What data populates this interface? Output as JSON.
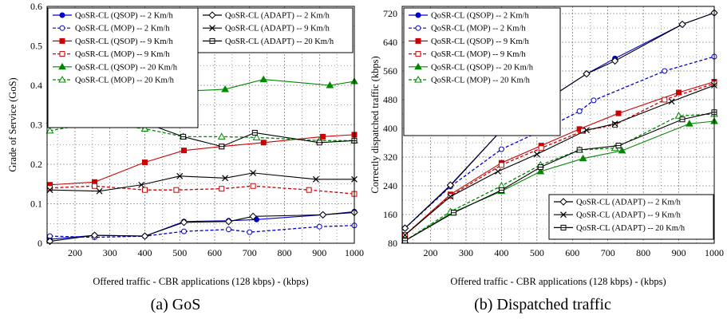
{
  "chart_data": [
    {
      "type": "line",
      "caption": "(a) GoS",
      "xlabel": "Offered traffic - CBR applications (128 kbps) - (kbps)",
      "ylabel": "Grade of Service (GoS)",
      "xlim": [
        120,
        1000
      ],
      "ylim": [
        0,
        0.6
      ],
      "xticks": [
        200,
        300,
        400,
        500,
        600,
        700,
        800,
        900,
        1000
      ],
      "yticks": [
        0,
        0.1,
        0.2,
        0.3,
        0.4,
        0.5,
        0.6
      ],
      "ytick_labels": [
        "0",
        "0.1",
        "0.2",
        "0.3",
        "0.4",
        "0.5",
        "0.6"
      ],
      "grid": true,
      "legend_placement": "top-left and top-center",
      "series": [
        {
          "name": "QoSR-CL (QSOP) -- 2 Km/h",
          "color": "#0000cc",
          "dash": "solid",
          "marker": "circle-filled",
          "legend": 0,
          "x": [
            128,
            256,
            400,
            512,
            640,
            720,
            910,
            1000
          ],
          "y": [
            0.01,
            0.02,
            0.018,
            0.055,
            0.057,
            0.06,
            0.072,
            0.08
          ]
        },
        {
          "name": "QoSR-CL (MOP) -- 2 Km/h",
          "color": "#0000cc",
          "dash": "dashed",
          "marker": "circle-open",
          "legend": 0,
          "x": [
            128,
            256,
            400,
            512,
            640,
            700,
            900,
            1000
          ],
          "y": [
            0.018,
            0.015,
            0.018,
            0.03,
            0.035,
            0.028,
            0.042,
            0.045
          ]
        },
        {
          "name": "QoSR-CL (QSOP) -- 9 Km/h",
          "color": "#cc0000",
          "dash": "solid",
          "marker": "square-filled",
          "legend": 0,
          "x": [
            128,
            256,
            400,
            512,
            620,
            740,
            910,
            1000
          ],
          "y": [
            0.148,
            0.155,
            0.205,
            0.235,
            0.245,
            0.255,
            0.27,
            0.275
          ]
        },
        {
          "name": "QoSR-CL (MOP) -- 9 Km/h",
          "color": "#cc0000",
          "dash": "dashed",
          "marker": "square-open",
          "legend": 0,
          "x": [
            128,
            256,
            400,
            490,
            620,
            710,
            870,
            1000
          ],
          "y": [
            0.14,
            0.145,
            0.135,
            0.135,
            0.138,
            0.145,
            0.135,
            0.125
          ]
        },
        {
          "name": "QoSR-CL (QSOP) -- 20 Km/h",
          "color": "#008800",
          "dash": "solid",
          "marker": "triangle-filled",
          "legend": 0,
          "x": [
            128,
            270,
            400,
            510,
            630,
            740,
            930,
            1000
          ],
          "y": [
            0.31,
            0.33,
            0.37,
            0.385,
            0.39,
            0.415,
            0.4,
            0.41
          ]
        },
        {
          "name": "QoSR-CL (MOP) -- 20 Km/h",
          "color": "#008800",
          "dash": "dashed",
          "marker": "triangle-open",
          "legend": 0,
          "x": [
            128,
            256,
            400,
            510,
            620,
            720,
            900,
            1000
          ],
          "y": [
            0.285,
            0.305,
            0.29,
            0.27,
            0.27,
            0.268,
            0.26,
            0.26
          ]
        },
        {
          "name": "QoSR-CL (ADAPT) -- 2 Km/h",
          "color": "#000000",
          "dash": "solid",
          "marker": "diamond-open",
          "legend": 1,
          "x": [
            128,
            256,
            400,
            512,
            640,
            710,
            910,
            1000
          ],
          "y": [
            0.005,
            0.02,
            0.018,
            0.053,
            0.055,
            0.068,
            0.072,
            0.078
          ]
        },
        {
          "name": "QoSR-CL (ADAPT) -- 9 Km/h",
          "color": "#000000",
          "dash": "solid",
          "marker": "x",
          "legend": 1,
          "x": [
            128,
            270,
            390,
            500,
            630,
            710,
            890,
            1000
          ],
          "y": [
            0.135,
            0.132,
            0.148,
            0.17,
            0.165,
            0.178,
            0.162,
            0.162
          ]
        },
        {
          "name": "QoSR-CL (ADAPT) -- 20 Km/h",
          "color": "#000000",
          "dash": "solid",
          "marker": "square-open",
          "legend": 1,
          "x": [
            128,
            270,
            400,
            510,
            620,
            715,
            900,
            1000
          ],
          "y": [
            0.325,
            0.302,
            0.305,
            0.27,
            0.245,
            0.28,
            0.255,
            0.26
          ]
        }
      ]
    },
    {
      "type": "line",
      "caption": "(b) Dispatched traffic",
      "xlabel": "Offered traffic - CBR applications (128 kbps) - (kbps)",
      "ylabel": "Correctly dispatched traffic (kbps)",
      "xlim": [
        120,
        1000
      ],
      "ylim": [
        80,
        740
      ],
      "xticks": [
        200,
        300,
        400,
        500,
        600,
        700,
        800,
        900,
        1000
      ],
      "yticks": [
        80,
        160,
        240,
        320,
        400,
        480,
        560,
        640,
        720
      ],
      "ytick_labels": [
        "80",
        "160",
        "240",
        "320",
        "400",
        "480",
        "560",
        "640",
        "720"
      ],
      "grid": true,
      "legend_placement": "top-left and bottom-right",
      "series": [
        {
          "name": "QoSR-CL (QSOP) -- 2 Km/h",
          "color": "#0000cc",
          "dash": "solid",
          "marker": "circle-filled",
          "legend": 0,
          "x": [
            128,
            256,
            400,
            512,
            640,
            720,
            910,
            1000
          ],
          "y": [
            122,
            240,
            395,
            470,
            552,
            595,
            690,
            722
          ]
        },
        {
          "name": "QoSR-CL (MOP) -- 2 Km/h",
          "color": "#0000cc",
          "dash": "dashed",
          "marker": "circle-open",
          "legend": 0,
          "x": [
            128,
            256,
            400,
            512,
            620,
            660,
            860,
            1000
          ],
          "y": [
            122,
            238,
            342,
            393,
            448,
            478,
            560,
            600
          ]
        },
        {
          "name": "QoSR-CL (QSOP) -- 9 Km/h",
          "color": "#cc0000",
          "dash": "solid",
          "marker": "square-filled",
          "legend": 0,
          "x": [
            128,
            256,
            400,
            512,
            620,
            730,
            900,
            1000
          ],
          "y": [
            103,
            216,
            304,
            352,
            398,
            442,
            500,
            530
          ]
        },
        {
          "name": "QoSR-CL (MOP) -- 9 Km/h",
          "color": "#cc0000",
          "dash": "dashed",
          "marker": "square-open",
          "legend": 0,
          "x": [
            128,
            256,
            400,
            512,
            630,
            720,
            860,
            1000
          ],
          "y": [
            103,
            212,
            298,
            345,
            393,
            410,
            480,
            525
          ]
        },
        {
          "name": "QoSR-CL (QSOP) -- 20 Km/h",
          "color": "#008800",
          "dash": "solid",
          "marker": "triangle-filled",
          "legend": 0,
          "x": [
            128,
            260,
            400,
            510,
            630,
            740,
            930,
            1000
          ],
          "y": [
            87,
            165,
            225,
            280,
            316,
            338,
            413,
            420
          ]
        },
        {
          "name": "QoSR-CL (MOP) -- 20 Km/h",
          "color": "#008800",
          "dash": "dashed",
          "marker": "triangle-open",
          "legend": 0,
          "x": [
            128,
            256,
            400,
            510,
            620,
            720,
            900,
            1000
          ],
          "y": [
            87,
            168,
            240,
            298,
            340,
            345,
            435,
            440
          ]
        },
        {
          "name": "QoSR-CL (ADAPT) -- 2 Km/h",
          "color": "#000000",
          "dash": "solid",
          "marker": "diamond-open",
          "legend": 1,
          "x": [
            128,
            256,
            400,
            512,
            640,
            720,
            910,
            1000
          ],
          "y": [
            122,
            242,
            395,
            470,
            552,
            588,
            690,
            722
          ]
        },
        {
          "name": "QoSR-CL (ADAPT) -- 9 Km/h",
          "color": "#000000",
          "dash": "solid",
          "marker": "x",
          "legend": 1,
          "x": [
            128,
            256,
            390,
            500,
            640,
            720,
            880,
            1000
          ],
          "y": [
            103,
            210,
            280,
            328,
            395,
            413,
            475,
            520
          ]
        },
        {
          "name": "QoSR-CL (ADAPT) -- 20 Km/h",
          "color": "#000000",
          "dash": "solid",
          "marker": "square-open",
          "legend": 1,
          "x": [
            128,
            265,
            400,
            510,
            620,
            730,
            910,
            1000
          ],
          "y": [
            87,
            165,
            228,
            292,
            340,
            352,
            425,
            445
          ]
        }
      ]
    }
  ]
}
